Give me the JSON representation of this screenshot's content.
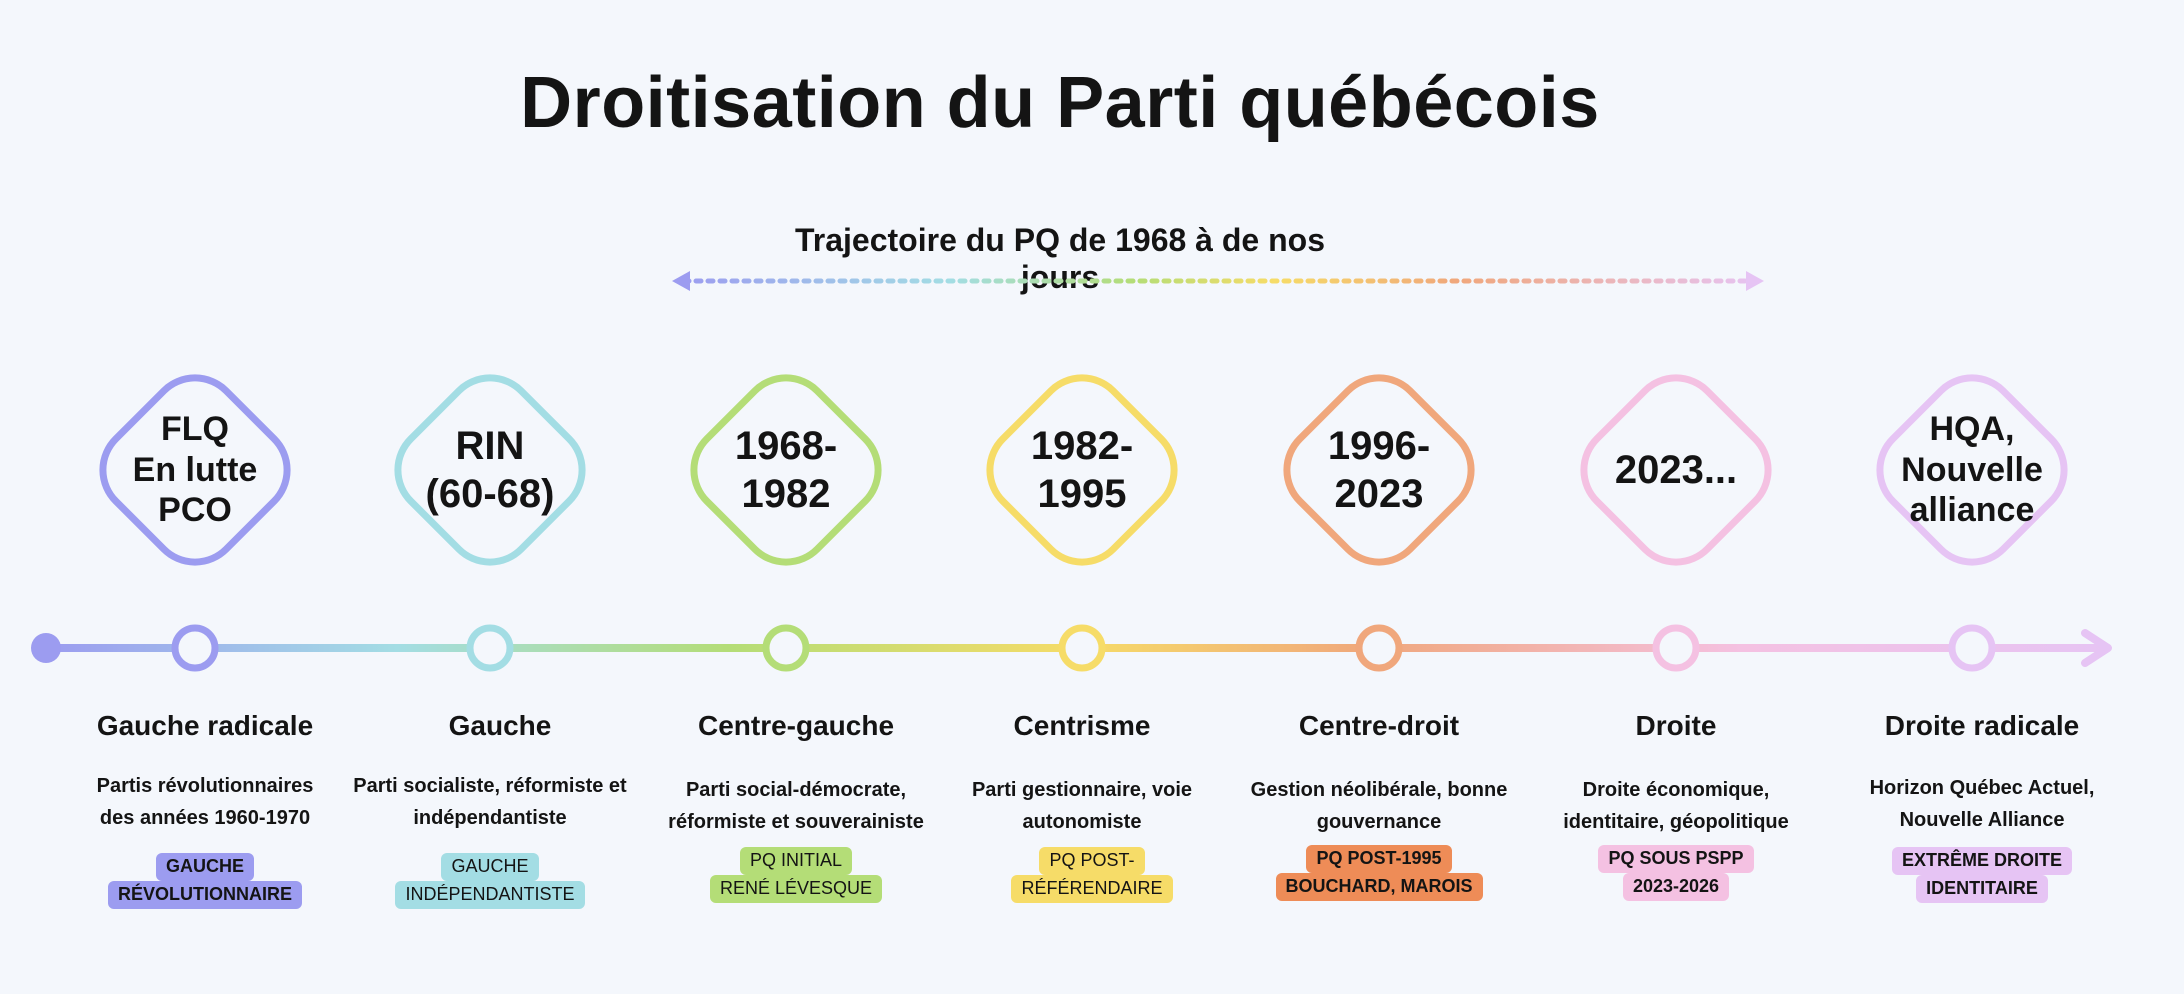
{
  "title": "Droitisation du Parti québécois",
  "subtitle": "Trajectoire du PQ de 1968 à de nos jours",
  "stages": [
    {
      "diamond_lines": [
        "FLQ",
        "En lutte",
        "PCO"
      ],
      "name": "Gauche radicale",
      "description_lines": [
        "Partis révolutionnaires",
        "des années 1960-1970"
      ],
      "tag_lines": [
        "GAUCHE",
        "RÉVOLUTIONNAIRE"
      ],
      "color": "#9c9cf0",
      "tag_bg": "#9c9cf0"
    },
    {
      "diamond_lines": [
        "RIN",
        "(60-68)"
      ],
      "name": "Gauche",
      "description_lines": [
        "Parti socialiste, réformiste et",
        "indépendantiste"
      ],
      "tag_lines": [
        "GAUCHE",
        "INDÉPENDANTISTE"
      ],
      "color": "#a3dde4",
      "tag_bg": "#a3dde4"
    },
    {
      "diamond_lines": [
        "1968-",
        "1982"
      ],
      "name": "Centre-gauche",
      "description_lines": [
        "Parti social-démocrate,",
        "réformiste et souverainiste"
      ],
      "tag_lines": [
        "PQ INITIAL",
        "RENÉ LÉVESQUE"
      ],
      "color": "#b4dd77",
      "tag_bg": "#b4dd77"
    },
    {
      "diamond_lines": [
        "1982-",
        "1995"
      ],
      "name": "Centrisme",
      "description_lines": [
        "Parti gestionnaire, voie",
        "autonomiste"
      ],
      "tag_lines": [
        "PQ POST-",
        "RÉFÉRENDAIRE"
      ],
      "color": "#f6dc68",
      "tag_bg": "#f6dc68"
    },
    {
      "diamond_lines": [
        "1996-",
        "2023"
      ],
      "name": "Centre-droit",
      "description_lines": [
        "Gestion néolibérale, bonne",
        "gouvernance"
      ],
      "tag_lines": [
        "PQ POST-1995",
        "BOUCHARD, MAROIS"
      ],
      "color": "#f0a77c",
      "tag_bg": "#ee8c57"
    },
    {
      "diamond_lines": [
        "2023..."
      ],
      "name": "Droite",
      "description_lines": [
        "Droite économique,",
        "identitaire, géopolitique"
      ],
      "tag_lines": [
        "PQ SOUS PSPP",
        "2023-2026"
      ],
      "color": "#f4c1e2",
      "tag_bg": "#f4c1e2"
    },
    {
      "diamond_lines": [
        "HQA,",
        "Nouvelle",
        "alliance"
      ],
      "name": "Droite radicale",
      "description_lines": [
        "Horizon Québec Actuel,",
        "Nouvelle Alliance"
      ],
      "tag_lines": [
        "EXTRÊME DROITE",
        "IDENTITAIRE"
      ],
      "color": "#e6c4f4",
      "tag_bg": "#e6c4f4"
    }
  ]
}
